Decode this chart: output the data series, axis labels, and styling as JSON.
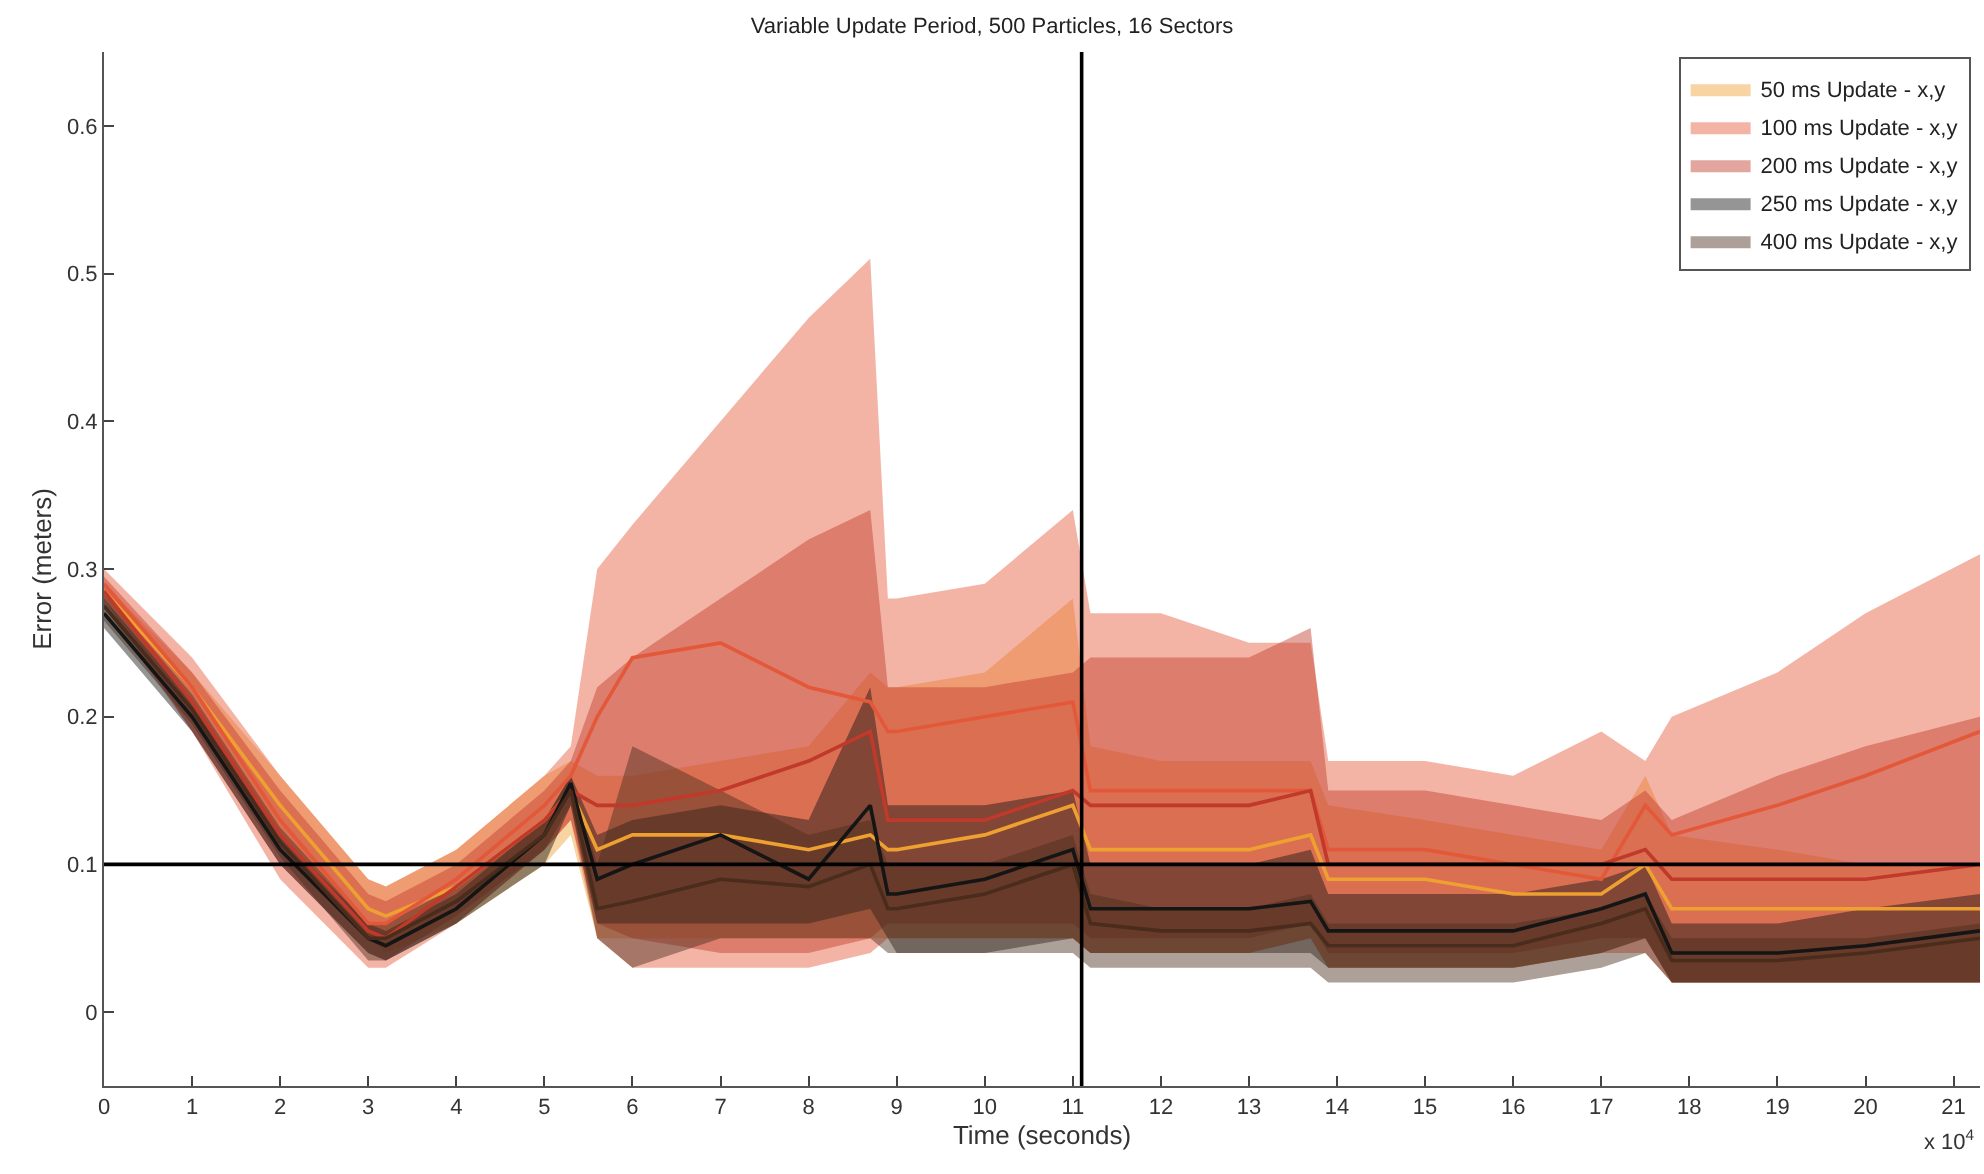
{
  "chart_data": {
    "type": "line",
    "title": "Variable Update Period, 500 Particles, 16 Sectors",
    "xlabel": "Time (seconds)",
    "ylabel": "Error (meters)",
    "x": [
      0,
      1,
      2,
      3,
      3.2,
      4,
      5,
      5.3,
      5.6,
      6,
      7,
      8,
      8.7,
      8.9,
      9,
      10,
      11,
      11.2,
      12,
      13,
      13.7,
      13.9,
      15,
      16,
      17,
      17.5,
      17.8,
      19,
      20,
      21.3
    ],
    "series": [
      {
        "name": "50 ms Update - x,y",
        "color": "#eea030",
        "values": [
          0.285,
          0.22,
          0.14,
          0.07,
          0.065,
          0.085,
          0.13,
          0.15,
          0.11,
          0.12,
          0.12,
          0.11,
          0.12,
          0.11,
          0.11,
          0.12,
          0.14,
          0.11,
          0.11,
          0.11,
          0.12,
          0.09,
          0.09,
          0.08,
          0.08,
          0.1,
          0.07,
          0.07,
          0.07,
          0.07
        ],
        "upper": [
          0.29,
          0.23,
          0.16,
          0.09,
          0.085,
          0.11,
          0.16,
          0.17,
          0.16,
          0.16,
          0.17,
          0.18,
          0.23,
          0.22,
          0.22,
          0.23,
          0.28,
          0.18,
          0.17,
          0.17,
          0.17,
          0.14,
          0.13,
          0.12,
          0.11,
          0.16,
          0.12,
          0.11,
          0.1,
          0.1
        ],
        "lower": [
          0.28,
          0.21,
          0.12,
          0.05,
          0.04,
          0.06,
          0.1,
          0.12,
          0.05,
          0.05,
          0.05,
          0.05,
          0.05,
          0.05,
          0.05,
          0.05,
          0.05,
          0.04,
          0.04,
          0.04,
          0.05,
          0.03,
          0.03,
          0.03,
          0.04,
          0.05,
          0.02,
          0.02,
          0.02,
          0.02
        ]
      },
      {
        "name": "100 ms Update - x,y",
        "color": "#e4583a",
        "values": [
          0.29,
          0.22,
          0.13,
          0.06,
          0.06,
          0.09,
          0.14,
          0.16,
          0.2,
          0.24,
          0.25,
          0.22,
          0.21,
          0.19,
          0.19,
          0.2,
          0.21,
          0.15,
          0.15,
          0.15,
          0.15,
          0.11,
          0.11,
          0.1,
          0.09,
          0.14,
          0.12,
          0.14,
          0.16,
          0.19
        ],
        "upper": [
          0.3,
          0.24,
          0.16,
          0.09,
          0.085,
          0.11,
          0.16,
          0.18,
          0.3,
          0.33,
          0.4,
          0.47,
          0.51,
          0.28,
          0.28,
          0.29,
          0.34,
          0.27,
          0.27,
          0.25,
          0.25,
          0.17,
          0.17,
          0.16,
          0.19,
          0.17,
          0.2,
          0.23,
          0.27,
          0.31
        ],
        "lower": [
          0.28,
          0.19,
          0.09,
          0.03,
          0.03,
          0.06,
          0.11,
          0.13,
          0.05,
          0.03,
          0.03,
          0.03,
          0.04,
          0.05,
          0.05,
          0.05,
          0.05,
          0.04,
          0.04,
          0.04,
          0.05,
          0.03,
          0.03,
          0.03,
          0.04,
          0.04,
          0.02,
          0.02,
          0.02,
          0.02
        ]
      },
      {
        "name": "200 ms Update - x,y",
        "color": "#c0392b",
        "values": [
          0.285,
          0.21,
          0.12,
          0.055,
          0.05,
          0.085,
          0.13,
          0.15,
          0.14,
          0.14,
          0.15,
          0.17,
          0.19,
          0.13,
          0.13,
          0.13,
          0.15,
          0.14,
          0.14,
          0.14,
          0.15,
          0.1,
          0.1,
          0.1,
          0.1,
          0.11,
          0.09,
          0.09,
          0.09,
          0.1
        ],
        "upper": [
          0.295,
          0.23,
          0.15,
          0.08,
          0.075,
          0.1,
          0.15,
          0.17,
          0.22,
          0.24,
          0.28,
          0.32,
          0.34,
          0.22,
          0.22,
          0.22,
          0.23,
          0.24,
          0.24,
          0.24,
          0.26,
          0.15,
          0.15,
          0.14,
          0.13,
          0.15,
          0.13,
          0.16,
          0.18,
          0.2
        ],
        "lower": [
          0.275,
          0.19,
          0.1,
          0.04,
          0.035,
          0.065,
          0.11,
          0.13,
          0.06,
          0.05,
          0.04,
          0.04,
          0.05,
          0.06,
          0.06,
          0.06,
          0.06,
          0.05,
          0.05,
          0.05,
          0.06,
          0.04,
          0.04,
          0.04,
          0.05,
          0.05,
          0.02,
          0.02,
          0.02,
          0.02
        ]
      },
      {
        "name": "250 ms Update - x,y",
        "color": "#151515",
        "values": [
          0.27,
          0.2,
          0.11,
          0.05,
          0.045,
          0.07,
          0.12,
          0.155,
          0.09,
          0.1,
          0.12,
          0.09,
          0.14,
          0.08,
          0.08,
          0.09,
          0.11,
          0.07,
          0.07,
          0.07,
          0.075,
          0.055,
          0.055,
          0.055,
          0.07,
          0.08,
          0.04,
          0.04,
          0.045,
          0.055
        ],
        "upper": [
          0.28,
          0.21,
          0.12,
          0.06,
          0.055,
          0.08,
          0.13,
          0.16,
          0.12,
          0.13,
          0.14,
          0.13,
          0.22,
          0.14,
          0.14,
          0.14,
          0.15,
          0.1,
          0.1,
          0.1,
          0.11,
          0.08,
          0.08,
          0.08,
          0.09,
          0.1,
          0.06,
          0.06,
          0.07,
          0.08
        ],
        "lower": [
          0.26,
          0.19,
          0.1,
          0.04,
          0.035,
          0.06,
          0.1,
          0.14,
          0.06,
          0.06,
          0.06,
          0.06,
          0.07,
          0.05,
          0.04,
          0.04,
          0.05,
          0.04,
          0.04,
          0.04,
          0.04,
          0.03,
          0.03,
          0.03,
          0.04,
          0.05,
          0.02,
          0.02,
          0.02,
          0.02
        ]
      },
      {
        "name": "400 ms Update - x,y",
        "color": "#4a2c1c",
        "values": [
          0.275,
          0.205,
          0.115,
          0.05,
          0.05,
          0.075,
          0.12,
          0.15,
          0.07,
          0.075,
          0.09,
          0.085,
          0.1,
          0.07,
          0.07,
          0.08,
          0.1,
          0.06,
          0.055,
          0.055,
          0.06,
          0.045,
          0.045,
          0.045,
          0.06,
          0.07,
          0.035,
          0.035,
          0.04,
          0.05
        ],
        "upper": [
          0.285,
          0.215,
          0.125,
          0.06,
          0.06,
          0.085,
          0.13,
          0.16,
          0.1,
          0.18,
          0.15,
          0.12,
          0.13,
          0.1,
          0.1,
          0.1,
          0.12,
          0.08,
          0.07,
          0.07,
          0.08,
          0.06,
          0.06,
          0.06,
          0.07,
          0.08,
          0.05,
          0.05,
          0.05,
          0.06
        ],
        "lower": [
          0.265,
          0.195,
          0.105,
          0.035,
          0.035,
          0.06,
          0.11,
          0.14,
          0.05,
          0.03,
          0.05,
          0.05,
          0.05,
          0.04,
          0.04,
          0.04,
          0.04,
          0.03,
          0.03,
          0.03,
          0.03,
          0.02,
          0.02,
          0.02,
          0.03,
          0.04,
          0.02,
          0.02,
          0.02,
          0.02
        ]
      }
    ],
    "xlim": [
      0,
      21.3
    ],
    "ylim": [
      -0.05,
      0.65
    ],
    "xticks": [
      0,
      1,
      2,
      3,
      4,
      5,
      6,
      7,
      8,
      9,
      10,
      11,
      12,
      13,
      14,
      15,
      16,
      17,
      18,
      19,
      20,
      21
    ],
    "yticks": [
      0,
      0.1,
      0.2,
      0.3,
      0.4,
      0.5,
      0.6
    ],
    "ref_lines": [
      {
        "axis": "y",
        "value": 0.1,
        "color": "#000000"
      },
      {
        "axis": "x",
        "value": 11.1,
        "color": "#000000"
      }
    ],
    "annotations": [
      "x 10$^{4}$"
    ],
    "legend": "top right",
    "marker": "none",
    "line_style": "solid"
  }
}
